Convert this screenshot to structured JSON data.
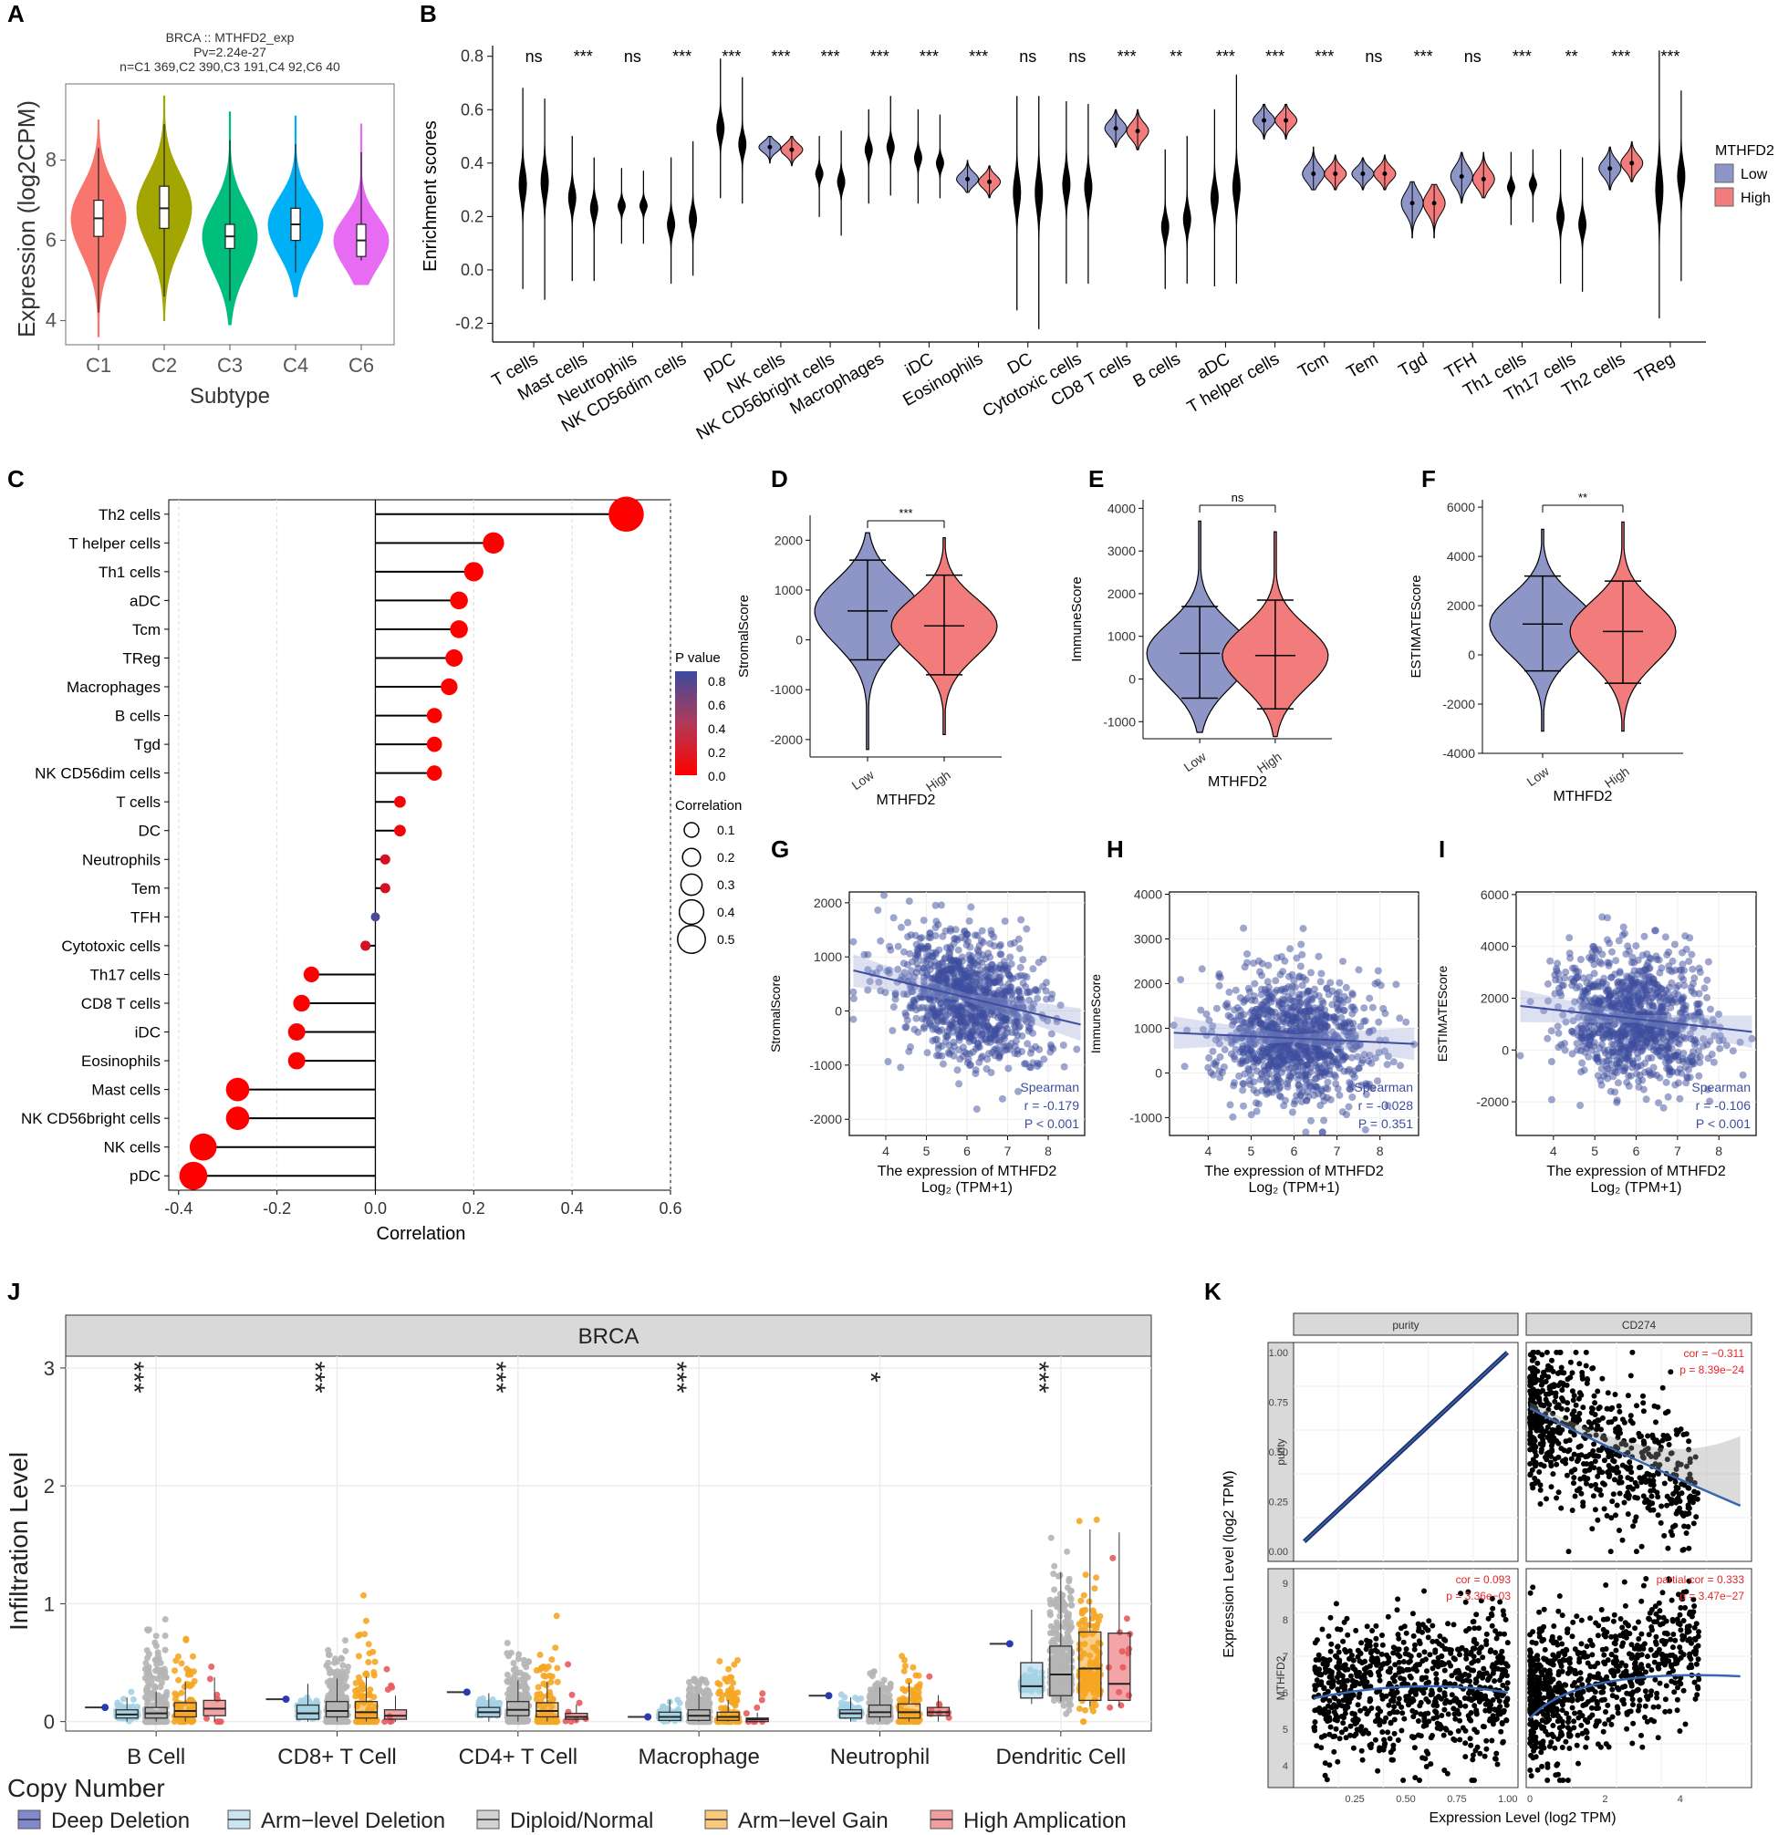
{
  "panel_labels": [
    "A",
    "B",
    "C",
    "D",
    "E",
    "F",
    "G",
    "H",
    "I",
    "J",
    "K"
  ],
  "chart_data": [
    {
      "id": "A",
      "type": "violin",
      "title_lines": [
        "BRCA :: MTHFD2_exp",
        "Pv=2.24e-27",
        "n=C1 369,C2 390,C3 191,C4 92,C6 40"
      ],
      "xlabel": "Subtype",
      "ylabel": "Expression (log2CPM)",
      "ylim": [
        3.4,
        9.9
      ],
      "yticks": [
        "4",
        "6",
        "8"
      ],
      "categories": [
        "C1",
        "C2",
        "C3",
        "C4",
        "C6"
      ],
      "colors": [
        "#F8766D",
        "#A3A500",
        "#00BF7D",
        "#00B0F6",
        "#E76BF3"
      ],
      "median": [
        6.55,
        6.8,
        6.1,
        6.4,
        6.0
      ],
      "q1": [
        6.1,
        6.3,
        5.8,
        6.0,
        5.6
      ],
      "q3": [
        7.0,
        7.35,
        6.4,
        6.8,
        6.4
      ],
      "min": [
        3.6,
        4.0,
        3.9,
        4.6,
        4.9
      ],
      "max": [
        9.0,
        9.6,
        9.2,
        9.1,
        8.9
      ]
    },
    {
      "id": "B",
      "type": "split-violin",
      "ylabel": "Enrichment scores",
      "ylim": [
        -0.27,
        0.84
      ],
      "yticks": [
        "-0.2",
        "0.0",
        "0.2",
        "0.4",
        "0.6",
        "0.8"
      ],
      "legend_title": "MTHFD2",
      "legend": [
        "Low",
        "High"
      ],
      "colors": {
        "Low": "#8E96C8",
        "High": "#F27C7C"
      },
      "categories": [
        "T cells",
        "Mast cells",
        "Neutrophils",
        "NK CD56dim cells",
        "pDC",
        "NK cells",
        "NK CD56bright cells",
        "Macrophages",
        "iDC",
        "Eosinophils",
        "DC",
        "Cytotoxic cells",
        "CD8 T cells",
        "B cells",
        "aDC",
        "T helper cells",
        "Tcm",
        "Tem",
        "Tgd",
        "TFH",
        "Th1 cells",
        "Th17 cells",
        "Th2 cells",
        "TReg"
      ],
      "significance": [
        "ns",
        "***",
        "ns",
        "***",
        "***",
        "***",
        "***",
        "***",
        "***",
        "***",
        "ns",
        "ns",
        "***",
        "**",
        "***",
        "***",
        "***",
        "ns",
        "***",
        "ns",
        "***",
        "**",
        "***",
        "***"
      ],
      "low_median": [
        0.32,
        0.27,
        0.24,
        0.17,
        0.53,
        0.46,
        0.36,
        0.45,
        0.42,
        0.34,
        0.29,
        0.32,
        0.53,
        0.16,
        0.27,
        0.56,
        0.36,
        0.36,
        0.25,
        0.35,
        0.31,
        0.2,
        0.38,
        0.3
      ],
      "high_median": [
        0.33,
        0.23,
        0.24,
        0.19,
        0.47,
        0.45,
        0.33,
        0.46,
        0.4,
        0.33,
        0.29,
        0.31,
        0.52,
        0.19,
        0.31,
        0.56,
        0.36,
        0.36,
        0.25,
        0.34,
        0.32,
        0.17,
        0.4,
        0.35
      ],
      "low_range": [
        [
          -0.07,
          0.68
        ],
        [
          -0.04,
          0.5
        ],
        [
          0.1,
          0.38
        ],
        [
          -0.05,
          0.42
        ],
        [
          0.27,
          0.79
        ],
        [
          0.4,
          0.5
        ],
        [
          0.2,
          0.5
        ],
        [
          0.25,
          0.6
        ],
        [
          0.25,
          0.6
        ],
        [
          0.29,
          0.41
        ],
        [
          -0.15,
          0.65
        ],
        [
          -0.05,
          0.63
        ],
        [
          0.46,
          0.6
        ],
        [
          -0.07,
          0.45
        ],
        [
          -0.06,
          0.6
        ],
        [
          0.49,
          0.62
        ],
        [
          0.3,
          0.46
        ],
        [
          0.3,
          0.42
        ],
        [
          0.12,
          0.33
        ],
        [
          0.25,
          0.44
        ],
        [
          0.17,
          0.44
        ],
        [
          -0.05,
          0.45
        ],
        [
          0.3,
          0.46
        ],
        [
          -0.18,
          0.82
        ]
      ],
      "high_range": [
        [
          -0.11,
          0.64
        ],
        [
          -0.04,
          0.42
        ],
        [
          0.1,
          0.37
        ],
        [
          -0.02,
          0.48
        ],
        [
          0.25,
          0.72
        ],
        [
          0.39,
          0.5
        ],
        [
          0.13,
          0.52
        ],
        [
          0.28,
          0.65
        ],
        [
          0.27,
          0.58
        ],
        [
          0.27,
          0.39
        ],
        [
          -0.22,
          0.65
        ],
        [
          -0.05,
          0.62
        ],
        [
          0.45,
          0.6
        ],
        [
          -0.05,
          0.5
        ],
        [
          -0.05,
          0.73
        ],
        [
          0.49,
          0.62
        ],
        [
          0.3,
          0.43
        ],
        [
          0.3,
          0.43
        ],
        [
          0.12,
          0.32
        ],
        [
          0.27,
          0.44
        ],
        [
          0.18,
          0.45
        ],
        [
          -0.08,
          0.42
        ],
        [
          0.33,
          0.48
        ],
        [
          -0.04,
          0.67
        ]
      ]
    },
    {
      "id": "C",
      "type": "lollipop",
      "xlabel": "Correlation",
      "xlim": [
        -0.42,
        0.6
      ],
      "xticks": [
        "-0.4",
        "-0.2",
        "0.0",
        "0.2",
        "0.4",
        "0.6"
      ],
      "categories": [
        "Th2 cells",
        "T helper cells",
        "Th1 cells",
        "aDC",
        "Tcm",
        "TReg",
        "Macrophages",
        "B cells",
        "Tgd",
        "NK CD56dim cells",
        "T cells",
        "DC",
        "Neutrophils",
        "Tem",
        "TFH",
        "Cytotoxic cells",
        "Th17 cells",
        "CD8 T cells",
        "iDC",
        "Eosinophils",
        "Mast cells",
        "NK CD56bright cells",
        "NK cells",
        "pDC"
      ],
      "values": [
        0.51,
        0.24,
        0.2,
        0.17,
        0.17,
        0.16,
        0.15,
        0.12,
        0.12,
        0.12,
        0.05,
        0.05,
        0.02,
        0.02,
        0.0,
        -0.02,
        -0.13,
        -0.15,
        -0.16,
        -0.16,
        -0.28,
        -0.28,
        -0.35,
        -0.37
      ],
      "pvalues": [
        0.0,
        0.0,
        0.0,
        0.0,
        0.0,
        0.0,
        0.0,
        0.0,
        0.0,
        0.0,
        0.05,
        0.05,
        0.2,
        0.2,
        0.85,
        0.2,
        0.0,
        0.0,
        0.0,
        0.0,
        0.0,
        0.0,
        0.0,
        0.0
      ],
      "p_legend_title": "P value",
      "p_legend_ticks": [
        "0.8",
        "0.6",
        "0.4",
        "0.2",
        "0.0"
      ],
      "size_legend_title": "Correlation",
      "size_legend_ticks": [
        "0.1",
        "0.2",
        "0.3",
        "0.4",
        "0.5"
      ]
    },
    {
      "id": "D",
      "type": "violin",
      "xlabel": "MTHFD2",
      "ylabel": "StromalScore",
      "categories": [
        "Low",
        "High"
      ],
      "significance": "***",
      "ylim": [
        -2350,
        2500
      ],
      "yticks": [
        "-2000",
        "-1000",
        "0",
        "1000",
        "2000"
      ],
      "mean": [
        580,
        280
      ],
      "sd_low": [
        -400,
        -700
      ],
      "sd_high": [
        1600,
        1300
      ],
      "min": [
        -2200,
        -1900
      ],
      "max": [
        2150,
        2050
      ]
    },
    {
      "id": "E",
      "type": "violin",
      "xlabel": "MTHFD2",
      "ylabel": "ImmuneScore",
      "categories": [
        "Low",
        "High"
      ],
      "significance": "ns",
      "ylim": [
        -1400,
        4200
      ],
      "yticks": [
        "-1000",
        "0",
        "1000",
        "2000",
        "3000",
        "4000"
      ],
      "mean": [
        600,
        550
      ],
      "sd_low": [
        -450,
        -700
      ],
      "sd_high": [
        1700,
        1850
      ],
      "min": [
        -1250,
        -1350
      ],
      "max": [
        3700,
        3450
      ]
    },
    {
      "id": "F",
      "type": "violin",
      "xlabel": "MTHFD2",
      "ylabel": "ESTIMATEScore",
      "categories": [
        "Low",
        "High"
      ],
      "significance": "**",
      "ylim": [
        -4000,
        6300
      ],
      "yticks": [
        "-4000",
        "-2000",
        "0",
        "2000",
        "4000",
        "6000"
      ],
      "mean": [
        1250,
        950
      ],
      "sd_low": [
        -650,
        -1150
      ],
      "sd_high": [
        3200,
        3000
      ],
      "min": [
        -3100,
        -3100
      ],
      "max": [
        5100,
        5400
      ]
    },
    {
      "id": "G",
      "type": "scatter",
      "ylabel": "StromalScore",
      "xlabel_lines": [
        "The expression of MTHFD2",
        "Log₂ (TPM+1)"
      ],
      "xlim": [
        3.1,
        8.9
      ],
      "ylim": [
        -2300,
        2200
      ],
      "xticks": [
        "4",
        "5",
        "6",
        "7",
        "8"
      ],
      "yticks": [
        "-2000",
        "-1000",
        "0",
        "1000",
        "2000"
      ],
      "fit": [
        [
          3.2,
          750
        ],
        [
          8.8,
          -250
        ]
      ],
      "annotation": [
        "Spearman",
        "r = -0.179",
        "P < 0.001"
      ],
      "n_points": 1000
    },
    {
      "id": "H",
      "type": "scatter",
      "ylabel": "ImmuneScore",
      "xlabel_lines": [
        "The expression of MTHFD2",
        "Log₂ (TPM+1)"
      ],
      "xlim": [
        3.1,
        8.9
      ],
      "ylim": [
        -1400,
        4050
      ],
      "xticks": [
        "4",
        "5",
        "6",
        "7",
        "8"
      ],
      "yticks": [
        "-1000",
        "0",
        "1000",
        "2000",
        "3000",
        "4000"
      ],
      "fit": [
        [
          3.2,
          900
        ],
        [
          8.8,
          650
        ]
      ],
      "annotation": [
        "Spearman",
        "r = -0.028",
        "P = 0.351"
      ],
      "n_points": 1000
    },
    {
      "id": "I",
      "type": "scatter",
      "ylabel": "ESTIMATEScore",
      "xlabel_lines": [
        "The expression of MTHFD2",
        "Log₂ (TPM+1)"
      ],
      "xlim": [
        3.1,
        8.9
      ],
      "ylim": [
        -3300,
        6100
      ],
      "xticks": [
        "4",
        "5",
        "6",
        "7",
        "8"
      ],
      "yticks": [
        "-2000",
        "0",
        "2000",
        "4000",
        "6000"
      ],
      "fit": [
        [
          3.2,
          1700
        ],
        [
          8.8,
          700
        ]
      ],
      "annotation": [
        "Spearman",
        "r = -0.106",
        "P < 0.001"
      ],
      "n_points": 1000
    },
    {
      "id": "J",
      "type": "box-jitter",
      "facet": "BRCA",
      "ylabel": "Infiltration Level",
      "ylim": [
        -0.08,
        3.1
      ],
      "yticks": [
        "0",
        "1",
        "2",
        "3"
      ],
      "categories": [
        "B Cell",
        "CD8+ T Cell",
        "CD4+ T Cell",
        "Macrophage",
        "Neutrophil",
        "Dendritic Cell"
      ],
      "significance": [
        "***",
        "***",
        "***",
        "***",
        "*",
        "***"
      ],
      "legend_title": "Copy Number",
      "legend": [
        "Deep Deletion",
        "Arm−level Deletion",
        "Diploid/Normal",
        "Arm−level Gain",
        "High Amplication"
      ],
      "colors": [
        "#2B3BAF",
        "#A6D2E6",
        "#B5B5B5",
        "#F5A623",
        "#E85A5E"
      ],
      "box_median": [
        [
          0.12,
          0.06,
          0.07,
          0.09,
          0.11
        ],
        [
          0.19,
          0.07,
          0.09,
          0.08,
          0.05
        ],
        [
          0.25,
          0.08,
          0.1,
          0.09,
          0.04
        ],
        [
          0.04,
          0.04,
          0.05,
          0.04,
          0.02
        ],
        [
          0.22,
          0.07,
          0.08,
          0.08,
          0.08
        ],
        [
          0.66,
          0.3,
          0.4,
          0.45,
          0.32
        ]
      ],
      "box_q1": [
        [
          0.12,
          0.03,
          0.03,
          0.04,
          0.05
        ],
        [
          0.19,
          0.02,
          0.04,
          0.03,
          0.02
        ],
        [
          0.25,
          0.04,
          0.05,
          0.04,
          0.02
        ],
        [
          0.04,
          0.01,
          0.01,
          0.01,
          0.0
        ],
        [
          0.22,
          0.03,
          0.04,
          0.03,
          0.05
        ],
        [
          0.66,
          0.2,
          0.22,
          0.18,
          0.18
        ]
      ],
      "box_q3": [
        [
          0.12,
          0.1,
          0.12,
          0.16,
          0.18
        ],
        [
          0.19,
          0.14,
          0.17,
          0.17,
          0.1
        ],
        [
          0.25,
          0.12,
          0.17,
          0.16,
          0.07
        ],
        [
          0.04,
          0.08,
          0.1,
          0.08,
          0.03
        ],
        [
          0.22,
          0.1,
          0.14,
          0.15,
          0.12
        ],
        [
          0.66,
          0.5,
          0.64,
          0.76,
          0.75
        ]
      ]
    },
    {
      "id": "K",
      "type": "scatter-matrix",
      "xlabel": "Expression Level (log2 TPM)",
      "ylabel": "Expression Level (log2 TPM)",
      "col_strips": [
        "purity",
        "CD274"
      ],
      "row_strips": [
        "purity",
        "MTHFD2"
      ],
      "top_left": {
        "xlim": [
          0,
          1.05
        ],
        "ylim": [
          -0.05,
          1.05
        ],
        "yticks": [
          "0.00",
          "0.25",
          "0.50",
          "0.75",
          "1.00"
        ]
      },
      "top_right": {
        "cor": "cor = −0.311",
        "p": "p = 8.39e−24",
        "xlim": [
          -0.1,
          5.9
        ],
        "ylim": [
          -0.05,
          1.05
        ]
      },
      "bottom_left": {
        "cor": "cor = 0.093",
        "p": "p = 3.36e−03",
        "xlim": [
          -0.05,
          1.05
        ],
        "ylim": [
          3.4,
          9.4
        ],
        "xticks": [
          "0.25",
          "0.50",
          "0.75",
          "1.00"
        ],
        "yticks": [
          "4",
          "5",
          "6",
          "7",
          "8",
          "9"
        ]
      },
      "bottom_right": {
        "cor": "partial.cor = 0.333",
        "p": "p = 3.47e−27",
        "xlim": [
          -0.1,
          5.9
        ],
        "ylim": [
          3.4,
          9.4
        ],
        "xticks": [
          "0",
          "2",
          "4"
        ]
      }
    }
  ]
}
